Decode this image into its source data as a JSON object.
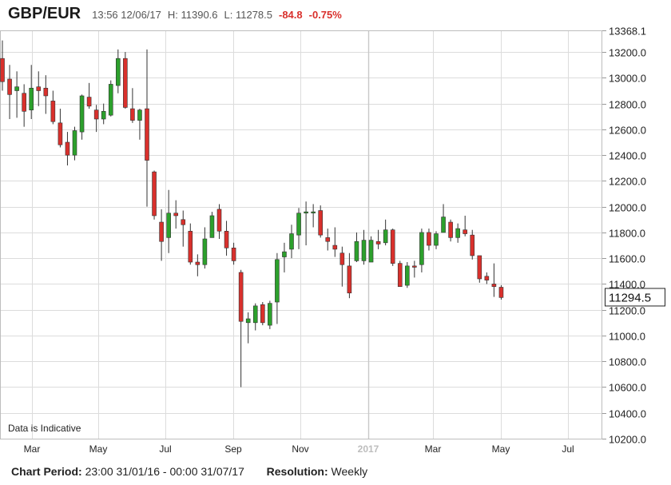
{
  "header": {
    "symbol": "GBP/EUR",
    "datetime": "13:56 12/06/17",
    "high": "H: 11390.6",
    "low": "L: 11278.5",
    "change": "-84.8",
    "change_pct": "-0.75%"
  },
  "footer": {
    "period_label": "Chart Period:",
    "period_value": "23:00 31/01/16 - 00:00 31/07/17",
    "resolution_label": "Resolution:",
    "resolution_value": "Weekly"
  },
  "notice": "Data is Indicative",
  "colors": {
    "up": "#2ca02c",
    "down": "#d9302c",
    "grid": "#dcdcdc",
    "wick": "#333333"
  },
  "chart_data": {
    "type": "candlestick",
    "ylim": [
      10200,
      13368.1
    ],
    "y_ticks": [
      "13368.1",
      "13200.0",
      "13000.0",
      "12800.0",
      "12600.0",
      "12400.0",
      "12200.0",
      "12000.0",
      "11800.0",
      "11600.0",
      "11400.0",
      "11200.0",
      "11000.0",
      "10800.0",
      "10600.0",
      "10400.0",
      "10200.0"
    ],
    "x_tick_labels": [
      "Mar",
      "May",
      "Jul",
      "Sep",
      "Nov",
      "2017",
      "Mar",
      "May",
      "Jul"
    ],
    "last_price": "11294.5",
    "candles": [
      {
        "o": 13150,
        "h": 13290,
        "l": 12900,
        "c": 12970
      },
      {
        "o": 12990,
        "h": 13100,
        "l": 12680,
        "c": 12870
      },
      {
        "o": 12900,
        "h": 13050,
        "l": 12690,
        "c": 12930
      },
      {
        "o": 12880,
        "h": 12950,
        "l": 12620,
        "c": 12740
      },
      {
        "o": 12750,
        "h": 13100,
        "l": 12680,
        "c": 12920
      },
      {
        "o": 12930,
        "h": 13050,
        "l": 12780,
        "c": 12900
      },
      {
        "o": 12920,
        "h": 13020,
        "l": 12720,
        "c": 12860
      },
      {
        "o": 12820,
        "h": 12900,
        "l": 12640,
        "c": 12660
      },
      {
        "o": 12650,
        "h": 12760,
        "l": 12460,
        "c": 12480
      },
      {
        "o": 12500,
        "h": 12580,
        "l": 12320,
        "c": 12400
      },
      {
        "o": 12400,
        "h": 12620,
        "l": 12360,
        "c": 12590
      },
      {
        "o": 12580,
        "h": 12870,
        "l": 12520,
        "c": 12860
      },
      {
        "o": 12850,
        "h": 12960,
        "l": 12760,
        "c": 12780
      },
      {
        "o": 12750,
        "h": 12790,
        "l": 12580,
        "c": 12680
      },
      {
        "o": 12680,
        "h": 12800,
        "l": 12640,
        "c": 12740
      },
      {
        "o": 12710,
        "h": 12980,
        "l": 12700,
        "c": 12950
      },
      {
        "o": 12940,
        "h": 13220,
        "l": 12880,
        "c": 13150
      },
      {
        "o": 13150,
        "h": 13200,
        "l": 12760,
        "c": 12770
      },
      {
        "o": 12760,
        "h": 12920,
        "l": 12650,
        "c": 12670
      },
      {
        "o": 12670,
        "h": 12760,
        "l": 12520,
        "c": 12750
      },
      {
        "o": 12760,
        "h": 13220,
        "l": 12000,
        "c": 12360
      },
      {
        "o": 12270,
        "h": 12280,
        "l": 11900,
        "c": 11930
      },
      {
        "o": 11880,
        "h": 11980,
        "l": 11580,
        "c": 11730
      },
      {
        "o": 11760,
        "h": 12130,
        "l": 11640,
        "c": 11950
      },
      {
        "o": 11950,
        "h": 12050,
        "l": 11830,
        "c": 11930
      },
      {
        "o": 11900,
        "h": 11970,
        "l": 11690,
        "c": 11860
      },
      {
        "o": 11810,
        "h": 11870,
        "l": 11550,
        "c": 11570
      },
      {
        "o": 11570,
        "h": 11630,
        "l": 11460,
        "c": 11550
      },
      {
        "o": 11550,
        "h": 11840,
        "l": 11520,
        "c": 11750
      },
      {
        "o": 11760,
        "h": 11960,
        "l": 11760,
        "c": 11930
      },
      {
        "o": 11980,
        "h": 12020,
        "l": 11750,
        "c": 11810
      },
      {
        "o": 11810,
        "h": 11890,
        "l": 11620,
        "c": 11680
      },
      {
        "o": 11680,
        "h": 11720,
        "l": 11550,
        "c": 11580
      },
      {
        "o": 11490,
        "h": 11510,
        "l": 10600,
        "c": 11110
      },
      {
        "o": 11100,
        "h": 11180,
        "l": 10940,
        "c": 11130
      },
      {
        "o": 11100,
        "h": 11250,
        "l": 11040,
        "c": 11230
      },
      {
        "o": 11240,
        "h": 11260,
        "l": 11080,
        "c": 11100
      },
      {
        "o": 11080,
        "h": 11270,
        "l": 11050,
        "c": 11250
      },
      {
        "o": 11260,
        "h": 11640,
        "l": 11090,
        "c": 11590
      },
      {
        "o": 11610,
        "h": 11720,
        "l": 11490,
        "c": 11650
      },
      {
        "o": 11670,
        "h": 11860,
        "l": 11600,
        "c": 11790
      },
      {
        "o": 11780,
        "h": 11990,
        "l": 11670,
        "c": 11950
      },
      {
        "o": 11950,
        "h": 12040,
        "l": 11700,
        "c": 11960
      },
      {
        "o": 11960,
        "h": 12020,
        "l": 11840,
        "c": 11960
      },
      {
        "o": 11970,
        "h": 12010,
        "l": 11760,
        "c": 11780
      },
      {
        "o": 11760,
        "h": 11830,
        "l": 11660,
        "c": 11730
      },
      {
        "o": 11700,
        "h": 11840,
        "l": 11610,
        "c": 11670
      },
      {
        "o": 11640,
        "h": 11690,
        "l": 11380,
        "c": 11550
      },
      {
        "o": 11540,
        "h": 11640,
        "l": 11290,
        "c": 11330
      },
      {
        "o": 11580,
        "h": 11800,
        "l": 11570,
        "c": 11730
      },
      {
        "o": 11580,
        "h": 11820,
        "l": 11550,
        "c": 11740
      },
      {
        "o": 11570,
        "h": 11770,
        "l": 11570,
        "c": 11740
      },
      {
        "o": 11730,
        "h": 11820,
        "l": 11670,
        "c": 11710
      },
      {
        "o": 11720,
        "h": 11900,
        "l": 11700,
        "c": 11820
      },
      {
        "o": 11820,
        "h": 11830,
        "l": 11540,
        "c": 11560
      },
      {
        "o": 11560,
        "h": 11580,
        "l": 11380,
        "c": 11380
      },
      {
        "o": 11390,
        "h": 11570,
        "l": 11370,
        "c": 11540
      },
      {
        "o": 11540,
        "h": 11580,
        "l": 11450,
        "c": 11530
      },
      {
        "o": 11550,
        "h": 11830,
        "l": 11490,
        "c": 11800
      },
      {
        "o": 11800,
        "h": 11830,
        "l": 11660,
        "c": 11700
      },
      {
        "o": 11700,
        "h": 11810,
        "l": 11670,
        "c": 11790
      },
      {
        "o": 11800,
        "h": 12020,
        "l": 11800,
        "c": 11920
      },
      {
        "o": 11880,
        "h": 11900,
        "l": 11730,
        "c": 11760
      },
      {
        "o": 11760,
        "h": 11870,
        "l": 11720,
        "c": 11830
      },
      {
        "o": 11820,
        "h": 11930,
        "l": 11770,
        "c": 11790
      },
      {
        "o": 11780,
        "h": 11820,
        "l": 11590,
        "c": 11620
      },
      {
        "o": 11620,
        "h": 11620,
        "l": 11410,
        "c": 11440
      },
      {
        "o": 11460,
        "h": 11490,
        "l": 11400,
        "c": 11430
      },
      {
        "o": 11400,
        "h": 11560,
        "l": 11300,
        "c": 11380
      },
      {
        "o": 11375,
        "h": 11391,
        "l": 11279,
        "c": 11295
      }
    ]
  }
}
